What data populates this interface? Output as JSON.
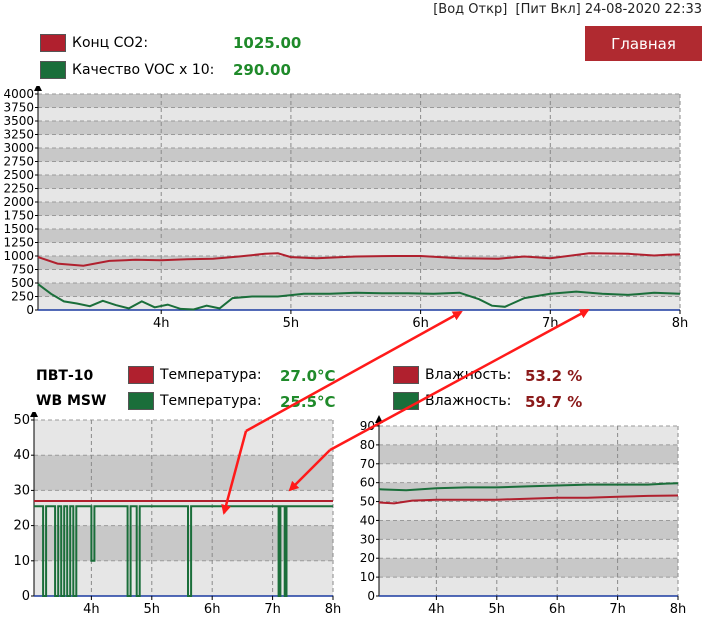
{
  "header": {
    "status_water": "[Вод Откр]",
    "status_power": "[Пит Вкл]",
    "datetime": "24-08-2020 22:33",
    "main_button_label": "Главная"
  },
  "top_chart": {
    "legend": [
      {
        "label": "Конц CO2:",
        "value": "1025.00",
        "color": "#b0202e"
      },
      {
        "label": "Качество VOC x 10:",
        "value": "290.00",
        "color": "#1a6e3a"
      }
    ]
  },
  "sensor_group": {
    "rows": [
      {
        "name": "ПВТ-10",
        "temp_label": "Температура:",
        "temp_value": "27.0°C",
        "hum_label": "Влажность:",
        "hum_value": "53.2 %",
        "color": "#b0202e"
      },
      {
        "name": "WB MSW",
        "temp_label": "Температура:",
        "temp_value": "25.5°C",
        "hum_label": "Влажность:",
        "hum_value": "59.7 %",
        "color": "#1a6e3a"
      }
    ]
  },
  "colors": {
    "series_red": "#b0202e",
    "series_green": "#1a6e3a",
    "value_green": "#1f8a2a",
    "value_red": "#8b1a1a",
    "annotation_arrow": "#ff1a1a"
  },
  "chart_data": [
    {
      "type": "line",
      "id": "co2_voc",
      "x_ticks": [
        "4h",
        "5h",
        "6h",
        "7h",
        "8h"
      ],
      "x_tick_values": [
        4,
        5,
        6,
        7,
        8
      ],
      "xlim": [
        3.05,
        8
      ],
      "ylim": [
        0,
        4000
      ],
      "y_ticks": [
        0,
        250,
        500,
        750,
        1000,
        1250,
        1500,
        1750,
        2000,
        2250,
        2500,
        2750,
        3000,
        3250,
        3500,
        3750,
        4000
      ],
      "grid": true,
      "series": [
        {
          "name": "Конц CO2",
          "color": "#b0202e",
          "x": [
            3.05,
            3.2,
            3.4,
            3.6,
            3.8,
            4.0,
            4.2,
            4.4,
            4.6,
            4.8,
            4.9,
            5.0,
            5.2,
            5.5,
            5.8,
            6.0,
            6.3,
            6.6,
            6.8,
            7.0,
            7.3,
            7.6,
            7.8,
            7.9,
            8.0
          ],
          "y": [
            980,
            860,
            820,
            910,
            930,
            920,
            940,
            950,
            990,
            1040,
            1050,
            980,
            960,
            990,
            1000,
            1000,
            960,
            950,
            990,
            960,
            1050,
            1040,
            1010,
            1025,
            1030
          ]
        },
        {
          "name": "Качество VOC x 10",
          "color": "#1a6e3a",
          "x": [
            3.05,
            3.15,
            3.25,
            3.35,
            3.45,
            3.55,
            3.65,
            3.75,
            3.85,
            3.95,
            4.05,
            4.15,
            4.25,
            4.35,
            4.45,
            4.55,
            4.7,
            4.9,
            5.1,
            5.3,
            5.5,
            5.7,
            5.9,
            6.1,
            6.3,
            6.45,
            6.55,
            6.65,
            6.8,
            7.0,
            7.2,
            7.4,
            7.6,
            7.8,
            8.0
          ],
          "y": [
            480,
            300,
            160,
            120,
            70,
            170,
            90,
            30,
            160,
            50,
            100,
            20,
            10,
            80,
            30,
            220,
            250,
            250,
            300,
            300,
            320,
            310,
            310,
            300,
            320,
            200,
            80,
            60,
            220,
            300,
            340,
            300,
            280,
            320,
            300
          ]
        }
      ]
    },
    {
      "type": "line",
      "id": "temperature",
      "x_ticks": [
        "4h",
        "5h",
        "6h",
        "7h",
        "8h"
      ],
      "x_tick_values": [
        4,
        5,
        6,
        7,
        8
      ],
      "xlim": [
        3.05,
        8
      ],
      "ylim": [
        0,
        50
      ],
      "y_ticks": [
        0,
        10,
        20,
        30,
        40,
        50
      ],
      "grid": true,
      "series": [
        {
          "name": "ПВТ-10",
          "color": "#b0202e",
          "x": [
            3.05,
            8.0
          ],
          "y": [
            27.0,
            27.0
          ]
        },
        {
          "name": "WB MSW",
          "color": "#1a6e3a",
          "x": [
            3.05,
            3.2,
            3.2,
            3.25,
            3.25,
            3.4,
            3.4,
            3.45,
            3.45,
            3.5,
            3.5,
            3.55,
            3.55,
            3.6,
            3.6,
            3.65,
            3.65,
            3.7,
            3.7,
            3.75,
            3.75,
            4.0,
            4.0,
            4.05,
            4.05,
            4.6,
            4.6,
            4.65,
            4.65,
            4.75,
            4.75,
            4.8,
            4.8,
            5.6,
            5.6,
            5.65,
            5.65,
            7.1,
            7.1,
            7.13,
            7.13,
            7.2,
            7.2,
            7.23,
            7.23,
            8.0
          ],
          "y": [
            25.5,
            25.5,
            0,
            0,
            25.5,
            25.5,
            0,
            0,
            25.5,
            25.5,
            0,
            0,
            25.5,
            25.5,
            0,
            0,
            25.5,
            25.5,
            0,
            0,
            25.5,
            25.5,
            10,
            10,
            25.5,
            25.5,
            0,
            0,
            25.5,
            25.5,
            0,
            0,
            25.5,
            25.5,
            0,
            0,
            25.5,
            25.5,
            0,
            0,
            25.5,
            25.5,
            0,
            0,
            25.5,
            25.5
          ]
        }
      ]
    },
    {
      "type": "line",
      "id": "humidity",
      "x_ticks": [
        "4h",
        "5h",
        "6h",
        "7h",
        "8h"
      ],
      "x_tick_values": [
        4,
        5,
        6,
        7,
        8
      ],
      "xlim": [
        3.05,
        8
      ],
      "ylim": [
        0,
        90
      ],
      "y_ticks": [
        0,
        10,
        20,
        30,
        40,
        50,
        60,
        70,
        80,
        90
      ],
      "grid": true,
      "series": [
        {
          "name": "ПВТ-10",
          "color": "#b0202e",
          "x": [
            3.05,
            3.3,
            3.6,
            4.0,
            4.5,
            5.0,
            5.5,
            6.0,
            6.5,
            7.0,
            7.5,
            8.0
          ],
          "y": [
            49.5,
            49.0,
            50.5,
            51.0,
            51.0,
            51.0,
            51.5,
            52.0,
            52.0,
            52.5,
            53.0,
            53.2
          ]
        },
        {
          "name": "WB MSW",
          "color": "#1a6e3a",
          "x": [
            3.05,
            3.5,
            4.0,
            4.5,
            5.0,
            5.5,
            6.0,
            6.5,
            7.0,
            7.5,
            7.8,
            8.0
          ],
          "y": [
            56.5,
            56.0,
            57.0,
            57.5,
            57.5,
            58.0,
            58.5,
            59.0,
            59.0,
            59.0,
            59.5,
            59.7
          ]
        }
      ]
    }
  ]
}
